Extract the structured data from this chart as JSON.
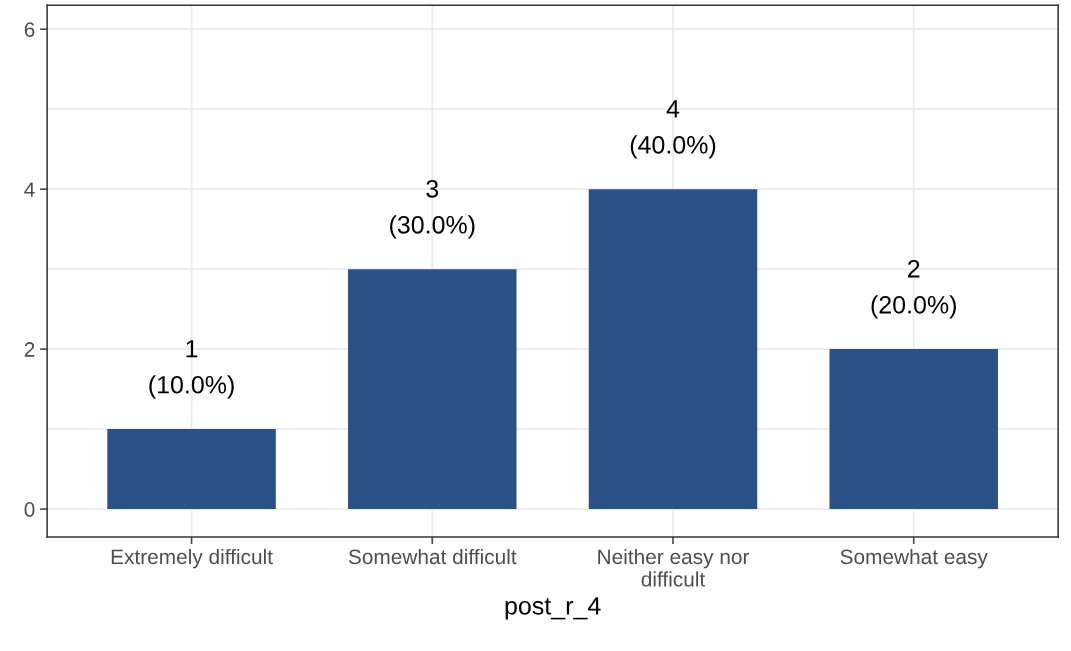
{
  "chart_data": {
    "type": "bar",
    "xlabel": "post_r_4",
    "categories": [
      "Extremely difficult",
      "Somewhat difficult",
      "Neither easy nor\ndifficult",
      "Somewhat easy"
    ],
    "values": [
      1,
      3,
      4,
      2
    ],
    "value_labels": [
      "1\n(10.0%)",
      "3\n(30.0%)",
      "4\n(40.0%)",
      "2\n(20.0%)"
    ],
    "color": "#2a5286",
    "ylim": [
      -0.35,
      6.3
    ],
    "yticks": [
      0,
      {
        "value": 1,
        "label": null
      },
      2,
      {
        "value": 3,
        "label": null
      },
      4,
      {
        "value": 5,
        "label": null
      },
      6
    ],
    "grid": true
  }
}
